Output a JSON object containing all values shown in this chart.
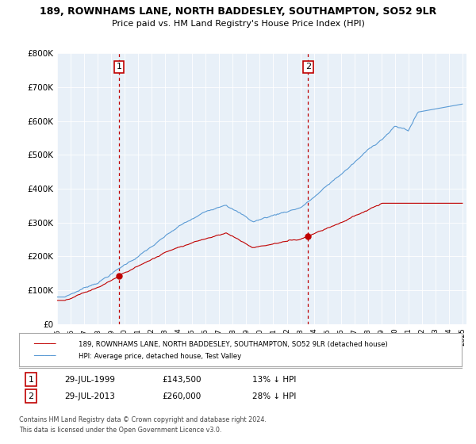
{
  "title": "189, ROWNHAMS LANE, NORTH BADDESLEY, SOUTHAMPTON, SO52 9LR",
  "subtitle": "Price paid vs. HM Land Registry's House Price Index (HPI)",
  "legend_line1": "189, ROWNHAMS LANE, NORTH BADDESLEY, SOUTHAMPTON, SO52 9LR (detached house)",
  "legend_line2": "HPI: Average price, detached house, Test Valley",
  "annotation1_date": "29-JUL-1999",
  "annotation1_price": 143500,
  "annotation1_year": 1999.58,
  "annotation2_date": "29-JUL-2013",
  "annotation2_price": 260000,
  "annotation2_year": 2013.58,
  "footer1": "Contains HM Land Registry data © Crown copyright and database right 2024.",
  "footer2": "This data is licensed under the Open Government Licence v3.0.",
  "hpi_color": "#5b9bd5",
  "price_color": "#c00000",
  "annotation_color": "#c00000",
  "chart_bg_color": "#e8f0f8",
  "background_color": "#ffffff",
  "grid_color": "#ffffff",
  "ylim": [
    0,
    800000
  ],
  "yticks": [
    0,
    100000,
    200000,
    300000,
    400000,
    500000,
    600000,
    700000,
    800000
  ],
  "start_year": 1995,
  "end_year": 2025
}
